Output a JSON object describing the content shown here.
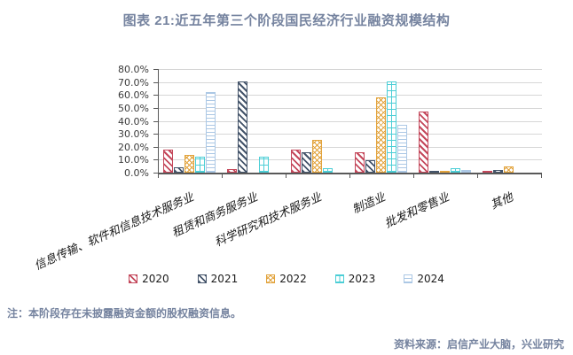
{
  "title": "图表 21:近五年第三个阶段国民经济行业融资规模结构",
  "note": "注：本阶段存在未披露融资金额的股权融资信息。",
  "source": "资料来源：启信产业大脑，兴业研究",
  "colors": {
    "title_text": "#75839F",
    "axis": "#595959",
    "gridline": "#D6D6D6",
    "series_2020": "#C4485B",
    "series_2021": "#44546A",
    "series_2022": "#E2A33C",
    "series_2023": "#4CCED6",
    "series_2024": "#ACC8E5"
  },
  "chart_data": {
    "type": "bar",
    "title": "图表 21:近五年第三个阶段国民经济行业融资规模结构",
    "xlabel": "",
    "ylabel": "",
    "ylim": [
      0,
      80
    ],
    "grid": true,
    "legend_position": "bottom",
    "y_ticks": [
      "80.0%",
      "70.0%",
      "60.0%",
      "50.0%",
      "40.0%",
      "30.0%",
      "20.0%",
      "10.0%",
      "0.0%"
    ],
    "categories": [
      "信息传输、软件和信息技术服务业",
      "租赁和商务服务业",
      "科学研究和技术服务业",
      "制造业",
      "批发和零售业",
      "其他"
    ],
    "series": [
      {
        "name": "2020",
        "color": "#C4485B",
        "pattern": "diagonal-stripe",
        "values": [
          17.5,
          2.5,
          18,
          16,
          47.5,
          1
        ]
      },
      {
        "name": "2021",
        "color": "#44546A",
        "pattern": "diagonal-stripe",
        "values": [
          4,
          70.5,
          15.5,
          9.5,
          1,
          2
        ]
      },
      {
        "name": "2022",
        "color": "#E2A33C",
        "pattern": "crosshatch",
        "values": [
          13.5,
          0,
          25,
          58,
          1.5,
          4.5
        ]
      },
      {
        "name": "2023",
        "color": "#4CCED6",
        "pattern": "window-grid",
        "values": [
          12.5,
          12,
          3.5,
          70.5,
          3.5,
          0
        ]
      },
      {
        "name": "2024",
        "color": "#ACC8E5",
        "pattern": "horizontal-lines",
        "values": [
          62.5,
          0,
          0,
          37,
          2,
          0
        ]
      }
    ]
  }
}
